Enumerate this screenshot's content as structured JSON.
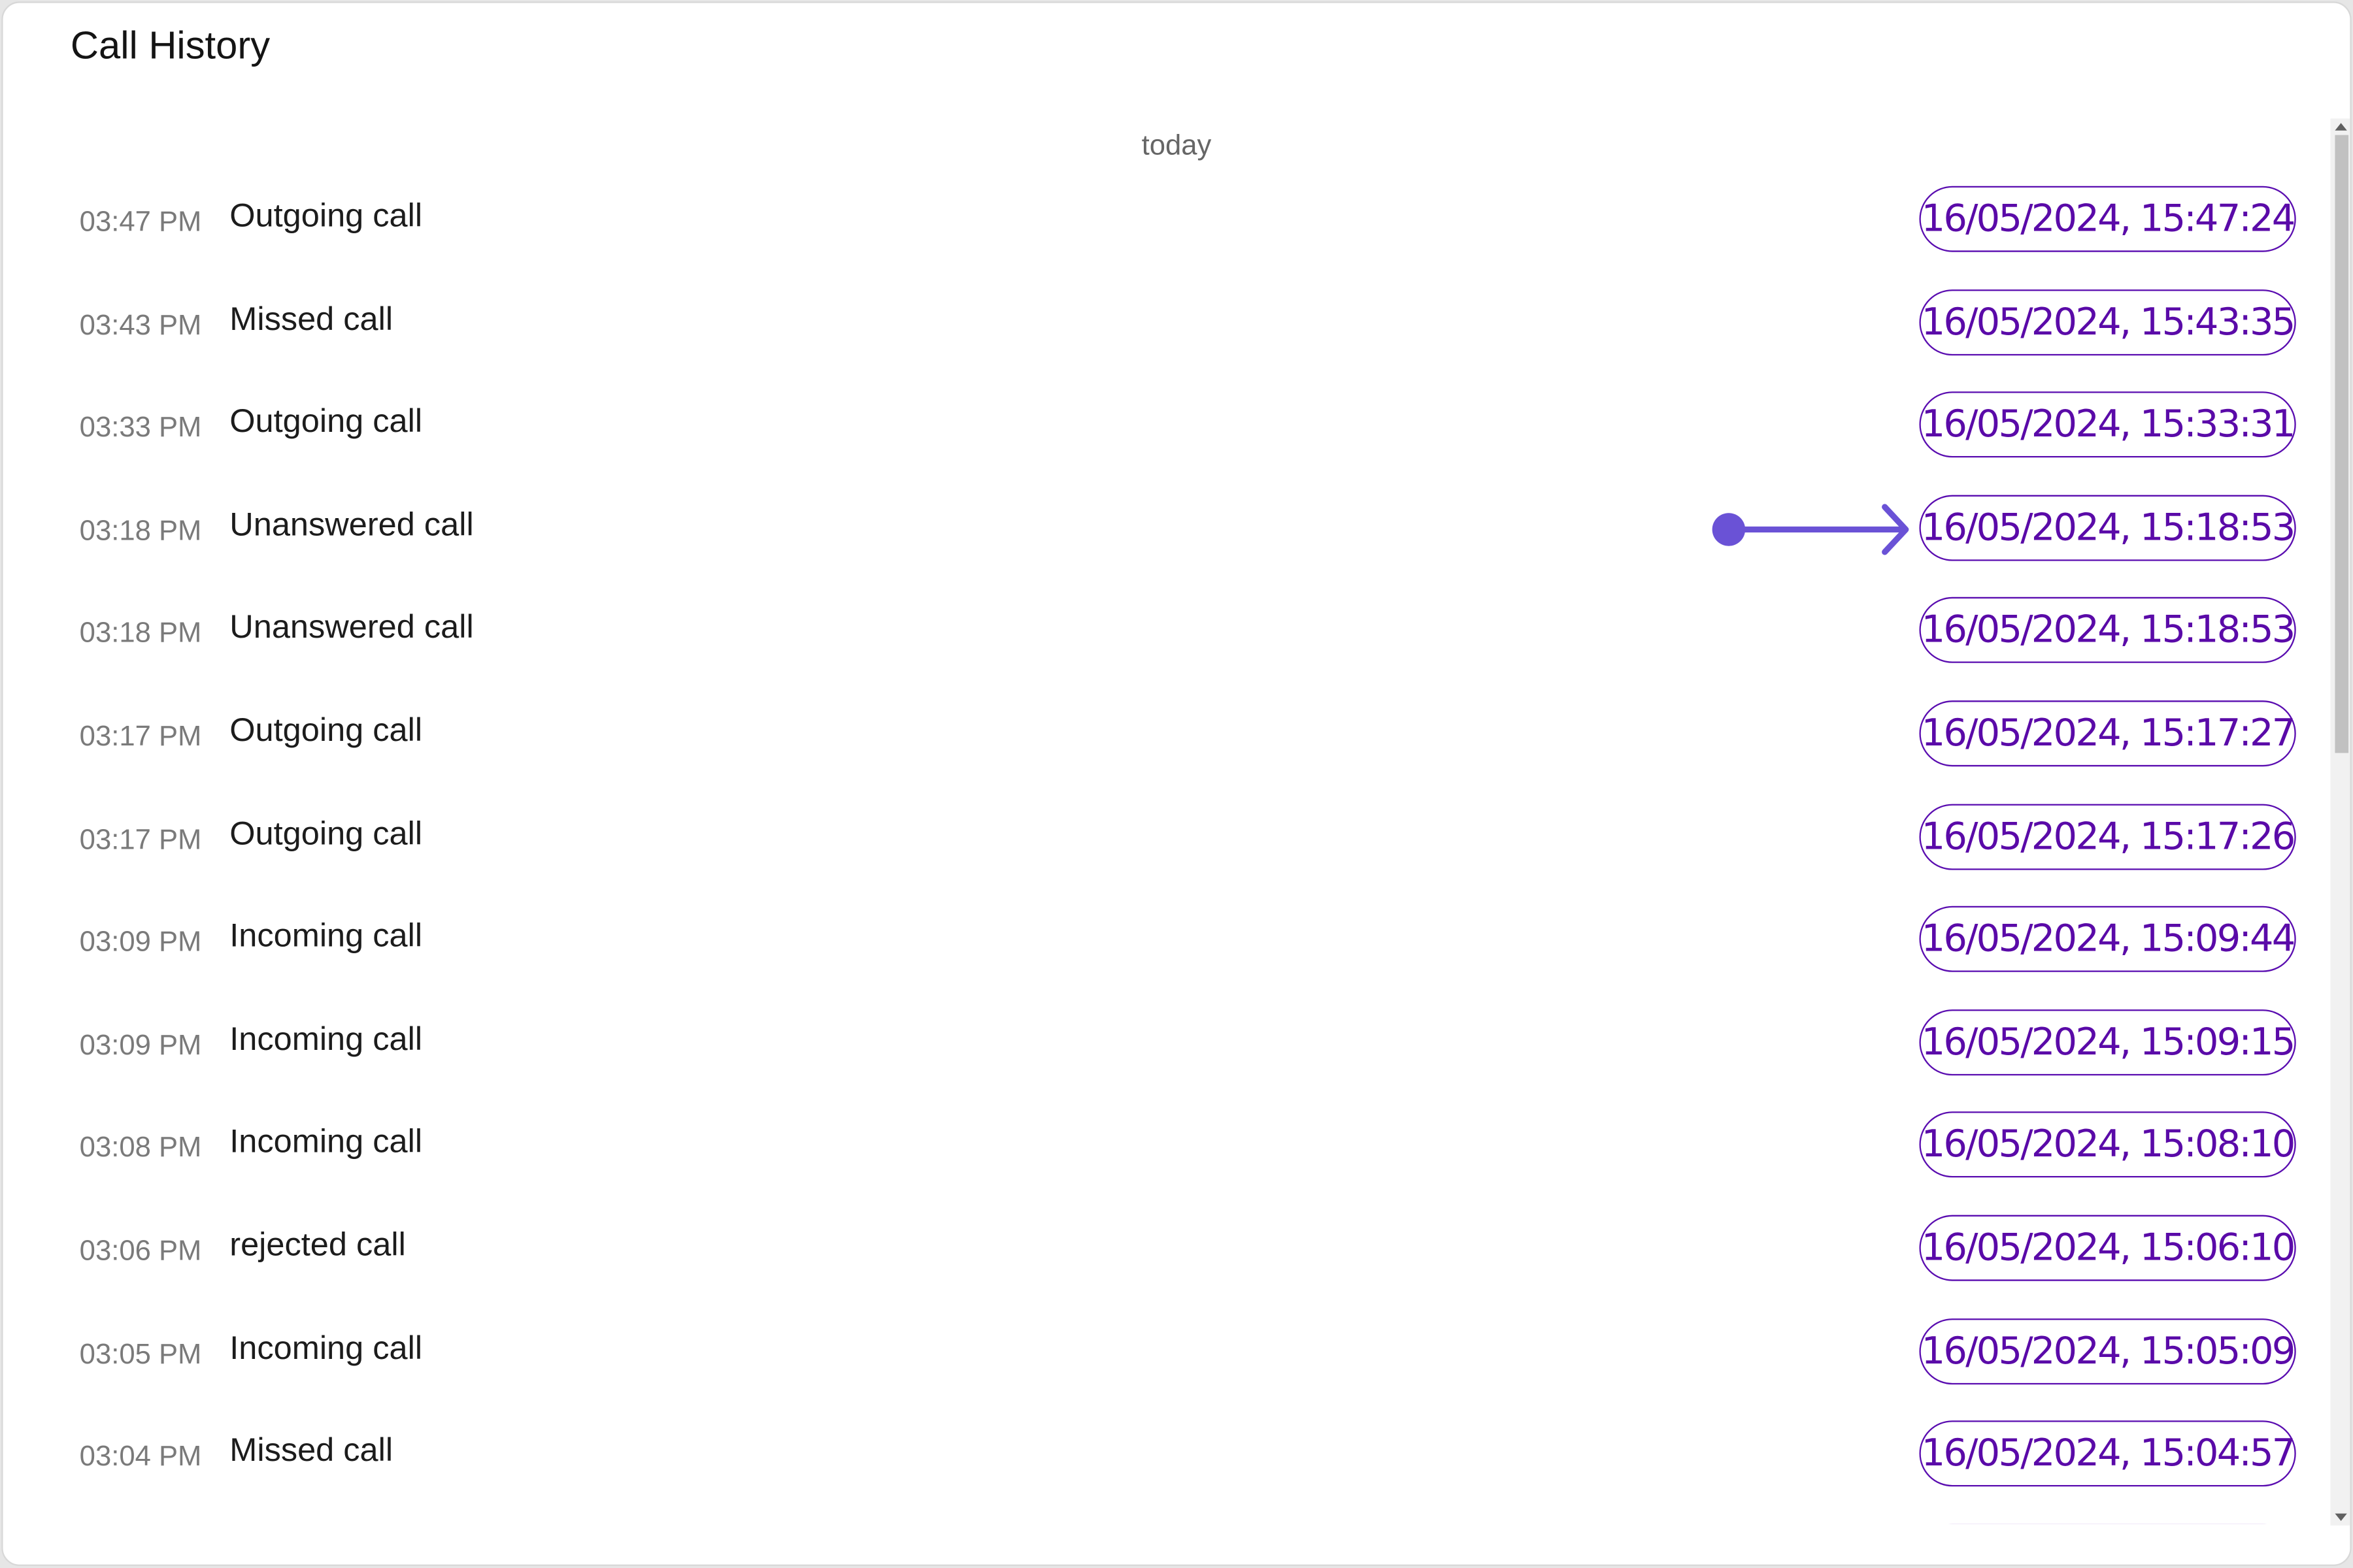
{
  "header": {
    "title": "Call History"
  },
  "list": {
    "group_label": "today",
    "items": [
      {
        "time": "03:47 PM",
        "type": "Outgoing call",
        "timestamp": "16/05/2024, 15:47:24"
      },
      {
        "time": "03:43 PM",
        "type": "Missed call",
        "timestamp": "16/05/2024, 15:43:35"
      },
      {
        "time": "03:33 PM",
        "type": "Outgoing call",
        "timestamp": "16/05/2024, 15:33:31"
      },
      {
        "time": "03:18 PM",
        "type": "Unanswered call",
        "timestamp": "16/05/2024, 15:18:53"
      },
      {
        "time": "03:18 PM",
        "type": "Unanswered call",
        "timestamp": "16/05/2024, 15:18:53"
      },
      {
        "time": "03:17 PM",
        "type": "Outgoing call",
        "timestamp": "16/05/2024, 15:17:27"
      },
      {
        "time": "03:17 PM",
        "type": "Outgoing call",
        "timestamp": "16/05/2024, 15:17:26"
      },
      {
        "time": "03:09 PM",
        "type": "Incoming call",
        "timestamp": "16/05/2024, 15:09:44"
      },
      {
        "time": "03:09 PM",
        "type": "Incoming call",
        "timestamp": "16/05/2024, 15:09:15"
      },
      {
        "time": "03:08 PM",
        "type": "Incoming call",
        "timestamp": "16/05/2024, 15:08:10"
      },
      {
        "time": "03:06 PM",
        "type": "rejected call",
        "timestamp": "16/05/2024, 15:06:10"
      },
      {
        "time": "03:05 PM",
        "type": "Incoming call",
        "timestamp": "16/05/2024, 15:05:09"
      },
      {
        "time": "03:04 PM",
        "type": "Missed call",
        "timestamp": "16/05/2024, 15:04:57"
      },
      {
        "time": "",
        "type": "",
        "timestamp": ""
      }
    ]
  },
  "annotation": {
    "icon": "arrow-pointer-icon",
    "color": "#6a52d6",
    "target_row": 3
  },
  "colors": {
    "accent": "#5a0aa8",
    "border": "#5a0db0"
  }
}
